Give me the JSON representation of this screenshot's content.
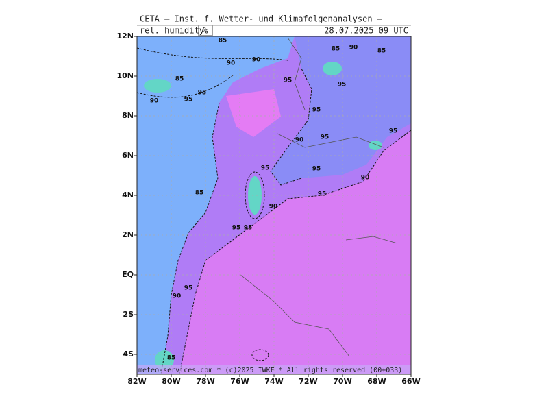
{
  "header": {
    "title": "CETA — Inst. f. Wetter- und Klimafolgenanalysen —",
    "field": "rel. humidity",
    "unit": "%",
    "valid": "28.07.2025 09 UTC"
  },
  "footer": "meteo-services.com * (c)2025 IWKF * All rights reserved (00+033)",
  "map": {
    "xlim": [
      -82,
      -66
    ],
    "ylim": [
      -5,
      12
    ],
    "xticks": [
      {
        "value": -82,
        "label": "82W"
      },
      {
        "value": -80,
        "label": "80W"
      },
      {
        "value": -78,
        "label": "78W"
      },
      {
        "value": -76,
        "label": "76W"
      },
      {
        "value": -74,
        "label": "74W"
      },
      {
        "value": -72,
        "label": "72W"
      },
      {
        "value": -70,
        "label": "70W"
      },
      {
        "value": -68,
        "label": "68W"
      },
      {
        "value": -66,
        "label": "66W"
      }
    ],
    "yticks": [
      {
        "value": 12,
        "label": "12N"
      },
      {
        "value": 10,
        "label": "10N"
      },
      {
        "value": 8,
        "label": "8N"
      },
      {
        "value": 6,
        "label": "6N"
      },
      {
        "value": 4,
        "label": "4N"
      },
      {
        "value": 2,
        "label": "2N"
      },
      {
        "value": 0,
        "label": "EQ"
      },
      {
        "value": -2,
        "label": "2S"
      },
      {
        "value": -4,
        "label": "4S"
      }
    ],
    "grid": true,
    "contour_labels": [
      85,
      90,
      90,
      85,
      95,
      95,
      90,
      95,
      85,
      90,
      85,
      95,
      95,
      90,
      95,
      95,
      95,
      95,
      90,
      85,
      95,
      90,
      95,
      95,
      95,
      90,
      85
    ]
  }
}
